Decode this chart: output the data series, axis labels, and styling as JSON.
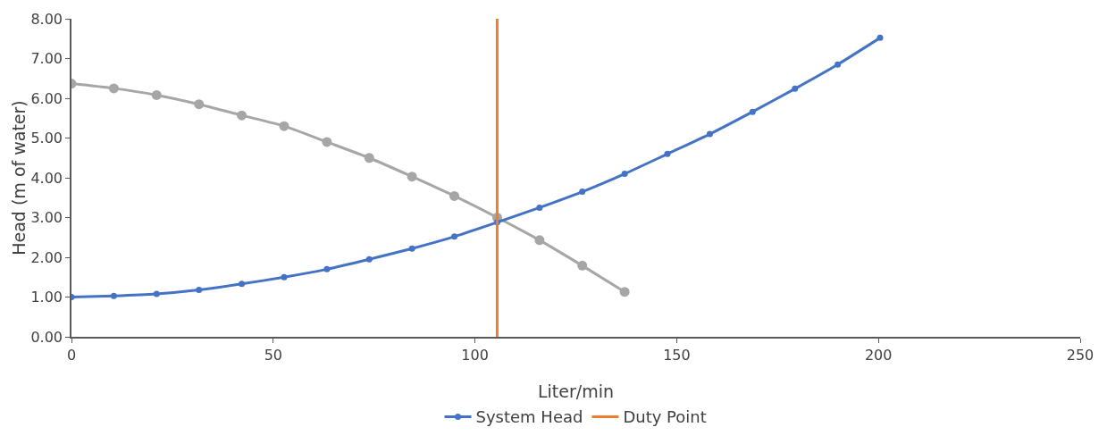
{
  "chart_data": {
    "type": "line",
    "xlabel": "Liter/min",
    "ylabel": "Head (m of water)",
    "xlim": [
      0,
      250
    ],
    "xticks": [
      0,
      50,
      100,
      150,
      200,
      250
    ],
    "ylim": [
      0,
      8
    ],
    "yticks": [
      {
        "value": 0,
        "label": "0.00"
      },
      {
        "value": 1,
        "label": "1.00"
      },
      {
        "value": 2,
        "label": "2.00"
      },
      {
        "value": 3,
        "label": "3.00"
      },
      {
        "value": 4,
        "label": "4.00"
      },
      {
        "value": 5,
        "label": "5.00"
      },
      {
        "value": 6,
        "label": "6.00"
      },
      {
        "value": 7,
        "label": "7.00"
      },
      {
        "value": 8,
        "label": "8.00"
      }
    ],
    "grid": false,
    "legend": "bottom",
    "line_style": "solid",
    "series": [
      {
        "color": "#a6a6a6",
        "marker": "circle",
        "x": [
          0,
          10.5,
          21.1,
          31.6,
          42.2,
          52.7,
          63.3,
          73.8,
          84.4,
          94.9,
          105.5,
          116,
          126.6,
          137.1
        ],
        "values": [
          6.37,
          6.25,
          6.08,
          5.85,
          5.57,
          5.3,
          4.9,
          4.5,
          4.03,
          3.54,
          3.0,
          2.43,
          1.79,
          1.13
        ]
      },
      {
        "name": "System Head",
        "color": "#4472c4",
        "marker": "circle",
        "x": [
          0,
          10.5,
          21.1,
          31.6,
          42.2,
          52.7,
          63.3,
          73.8,
          84.4,
          94.9,
          105.5,
          116,
          126.6,
          137.1,
          147.7,
          158.2,
          168.8,
          179.3,
          189.9,
          200.4
        ],
        "values": [
          1.0,
          1.03,
          1.08,
          1.18,
          1.33,
          1.5,
          1.7,
          1.95,
          2.22,
          2.52,
          2.88,
          3.25,
          3.65,
          4.1,
          4.6,
          5.1,
          5.66,
          6.24,
          6.85,
          7.52
        ]
      },
      {
        "name": "Duty Point",
        "color": "#ed7d31",
        "marker": "none",
        "x": [
          105.5,
          105.5
        ],
        "values": [
          0,
          8
        ]
      }
    ]
  }
}
